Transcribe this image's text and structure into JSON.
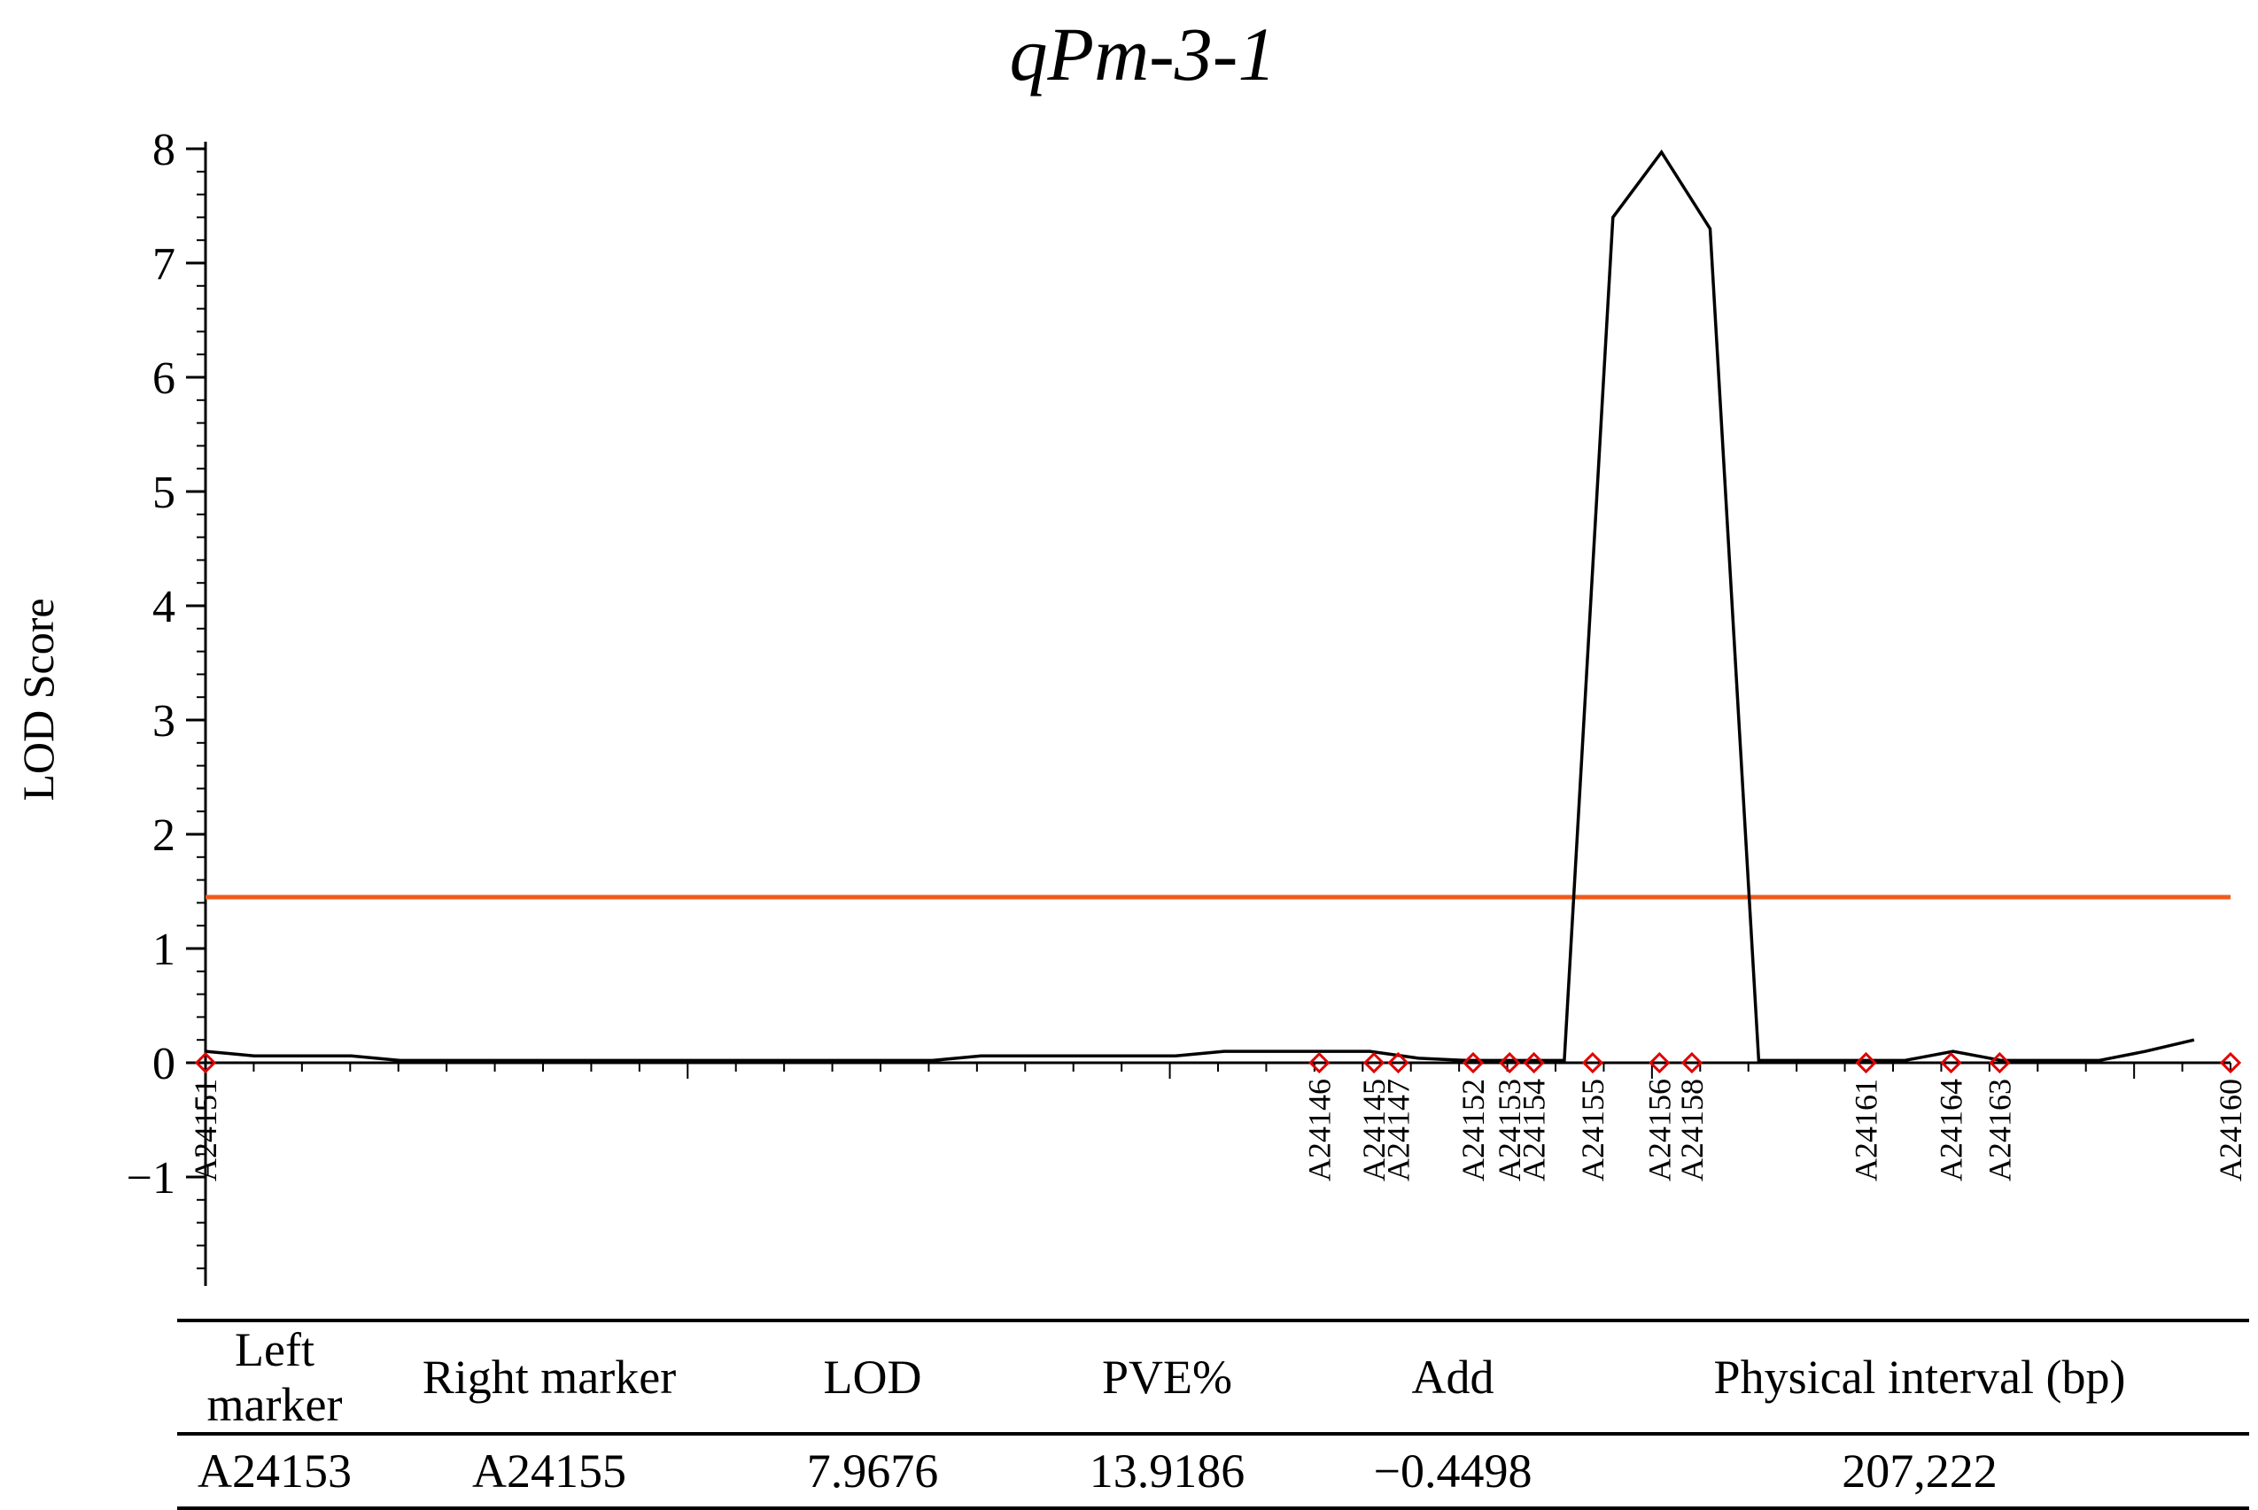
{
  "chart_data": {
    "type": "line",
    "title": "qPm-3-1",
    "xlabel": "",
    "ylabel": "LOD Score",
    "ylim": [
      -2,
      8.3
    ],
    "xlim": [
      0,
      100
    ],
    "yticks": [
      "8",
      "7",
      "6",
      "5",
      "4",
      "3",
      "2",
      "1",
      "0",
      "−1"
    ],
    "ytick_values": [
      8,
      7,
      6,
      5,
      4,
      3,
      2,
      1,
      0,
      -1
    ],
    "threshold": {
      "value": 1.45,
      "color": "#f05a1a"
    },
    "series": [
      {
        "name": "LOD",
        "color": "#000000",
        "x": [
          0,
          2.4,
          7.2,
          9.6,
          35.9,
          38.3,
          47.9,
          50.3,
          57.5,
          59.9,
          62.3,
          64.7,
          66.2,
          67.1,
          69.5,
          71.9,
          74.3,
          76.7,
          79.1,
          81.5,
          83.9,
          86.3,
          88.7,
          91.1,
          93.5,
          95.8,
          98.2
        ],
        "values": [
          0.1,
          0.06,
          0.06,
          0.02,
          0.02,
          0.06,
          0.06,
          0.1,
          0.1,
          0.04,
          0.02,
          0.02,
          0.02,
          0.02,
          7.4,
          7.97,
          7.3,
          0.02,
          0.02,
          0.02,
          0.02,
          0.1,
          0.02,
          0.02,
          0.02,
          0.1,
          0.2
        ]
      }
    ],
    "markers": {
      "color": "#e00000",
      "names": [
        "A24151",
        "A24146",
        "A24145",
        "A24147",
        "A24152",
        "A24153",
        "A24154",
        "A24155",
        "A24156",
        "A24158",
        "A24161",
        "A24164",
        "A24163",
        "A24160"
      ],
      "x": [
        0,
        55.0,
        57.7,
        58.9,
        62.6,
        64.4,
        65.6,
        68.5,
        71.8,
        73.4,
        82.0,
        86.2,
        88.6,
        100
      ]
    }
  },
  "table": {
    "headers": [
      "Left marker",
      "Right marker",
      "LOD",
      "PVE%",
      "Add",
      "Physical interval (bp)"
    ],
    "rows": [
      [
        "A24153",
        "A24155",
        "7.9676",
        "13.9186",
        "−0.4498",
        "207,222"
      ]
    ]
  }
}
